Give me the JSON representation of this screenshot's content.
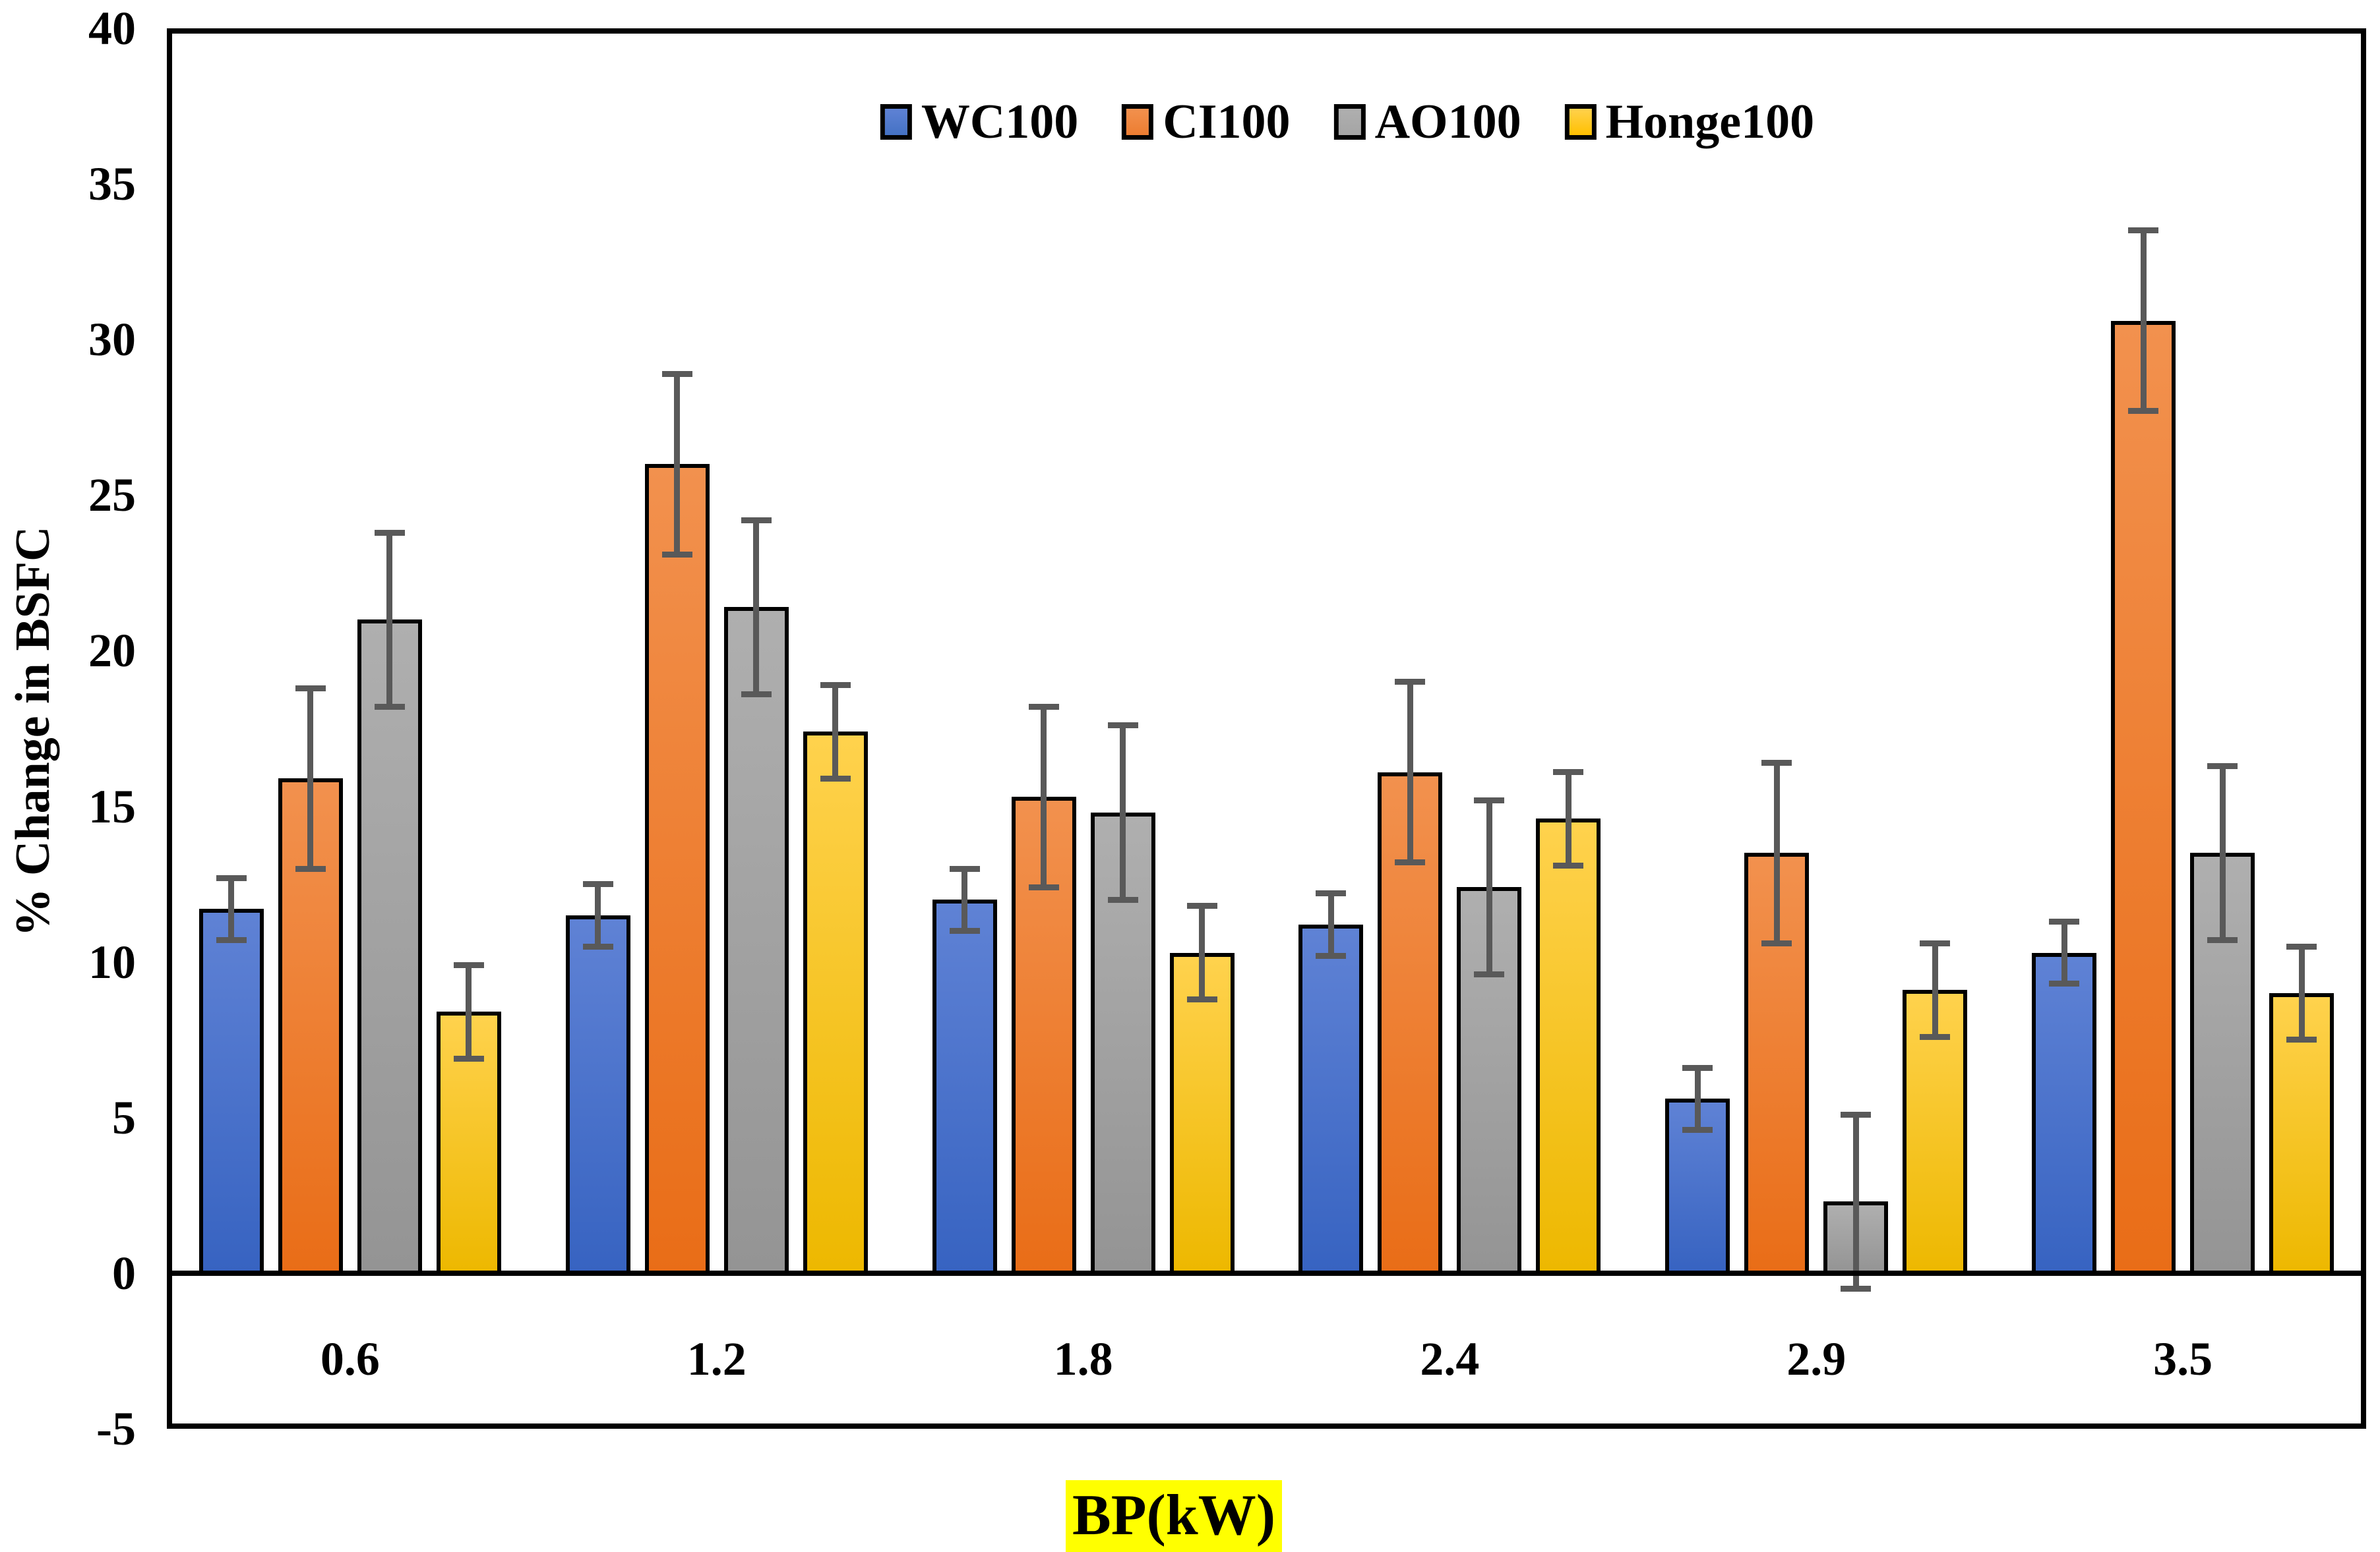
{
  "chart_data": {
    "type": "bar",
    "title": "",
    "xlabel": "BP(kW)",
    "ylabel": "% Change in BSFC",
    "categories": [
      "0.6",
      "1.2",
      "1.8",
      "2.4",
      "2.9",
      "3.5"
    ],
    "series": [
      {
        "name": "WC100",
        "values": [
          11.7,
          11.5,
          12.0,
          11.2,
          5.6,
          10.3
        ],
        "error": 1.0,
        "legend_color": "#4472C4",
        "fill_top": "#5F82D5",
        "fill_bottom": "#3763C1"
      },
      {
        "name": "CI100",
        "values": [
          15.9,
          26.0,
          15.3,
          16.1,
          13.5,
          30.6
        ],
        "error": 2.9,
        "legend_color": "#ED7D31",
        "fill_top": "#F2914E",
        "fill_bottom": "#E96D17"
      },
      {
        "name": "AO100",
        "values": [
          21.0,
          21.4,
          14.8,
          12.4,
          2.3,
          13.5
        ],
        "error": 2.8,
        "legend_color": "#A5A5A5",
        "fill_top": "#AFAFAF",
        "fill_bottom": "#949494"
      },
      {
        "name": "Honge100",
        "values": [
          8.4,
          17.4,
          10.3,
          14.6,
          9.1,
          9.0
        ],
        "error": 1.5,
        "legend_color": "#FFC000",
        "fill_top": "#FFD24D",
        "fill_bottom": "#EDB800"
      }
    ],
    "ylim": [
      -5,
      40
    ],
    "ytick_step": 5,
    "ytick_labels": [
      "40",
      "35",
      "30",
      "25",
      "20",
      "15",
      "10",
      "5",
      "0",
      "-5"
    ],
    "grid": "off",
    "legend_position": "top-center",
    "error_bar_color": "#595959",
    "axis_color": "#000000",
    "xlabel_highlight_color": "#FFFF00",
    "background_color": "#FFFFFF"
  }
}
